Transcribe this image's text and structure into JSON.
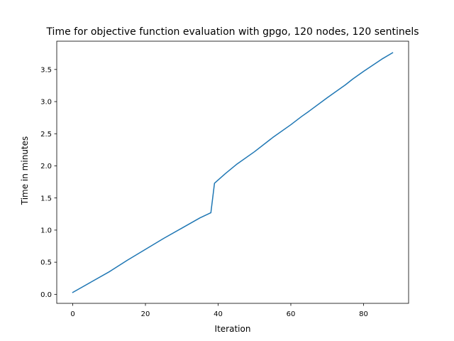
{
  "chart_data": {
    "type": "line",
    "title": "Time for objective function evaluation with gpgo, 120 nodes, 120 sentinels",
    "xlabel": "Iteration",
    "ylabel": "Time in minutes",
    "xlim": [
      -4.4,
      92.4
    ],
    "ylim": [
      -0.14,
      3.94
    ],
    "xticks": [
      0,
      20,
      40,
      60,
      80
    ],
    "xtick_labels": [
      "0",
      "20",
      "40",
      "60",
      "80"
    ],
    "yticks": [
      0.0,
      0.5,
      1.0,
      1.5,
      2.0,
      2.5,
      3.0,
      3.5
    ],
    "ytick_labels": [
      "0.0",
      "0.5",
      "1.0",
      "1.5",
      "2.0",
      "2.5",
      "3.0",
      "3.5"
    ],
    "grid": false,
    "legend": "none",
    "series": [
      {
        "color": "#1f77b4",
        "x": [
          0,
          5,
          10,
          15,
          20,
          25,
          30,
          35,
          38,
          39,
          42,
          45,
          50,
          55,
          60,
          63,
          65,
          70,
          75,
          77,
          80,
          85,
          88
        ],
        "y": [
          0.03,
          0.19,
          0.35,
          0.53,
          0.7,
          0.87,
          1.03,
          1.19,
          1.27,
          1.73,
          1.88,
          2.02,
          2.22,
          2.44,
          2.64,
          2.77,
          2.85,
          3.06,
          3.26,
          3.35,
          3.47,
          3.66,
          3.76
        ]
      }
    ]
  }
}
